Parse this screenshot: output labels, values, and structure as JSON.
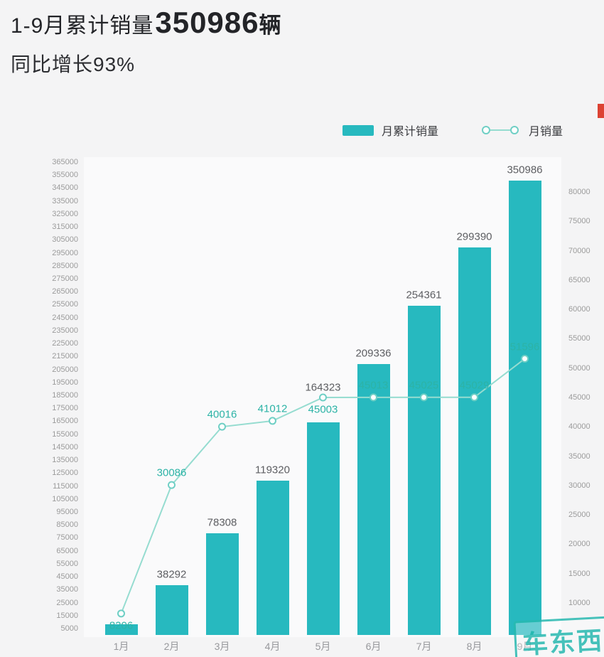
{
  "header": {
    "title_prefix": "1-9月累计销量",
    "title_number": "350986",
    "title_unit": "辆",
    "subtitle": "同比增长93%"
  },
  "legend": {
    "bar_label": "月累计销量",
    "line_label": "月销量"
  },
  "watermark_text": "车东西",
  "colors": {
    "bar": "#27b9bf",
    "line": "#95dcd0",
    "marker_stroke": "#6fcfc5",
    "line_label": "#2cb3a6",
    "bar_label": "#5d5e62",
    "axis_text": "#9b9b9b",
    "accent_tab": "#dc4233",
    "watermark": "#28b9b0"
  },
  "chart_data": {
    "type": "bar",
    "subtype": "bar+line combo, dual y-axis",
    "categories": [
      "1月",
      "2月",
      "3月",
      "4月",
      "5月",
      "6月",
      "7月",
      "8月",
      "9月"
    ],
    "series": [
      {
        "name": "月累计销量",
        "type": "bar",
        "axis": "left",
        "values": [
          8206,
          38292,
          78308,
          119320,
          164323,
          209336,
          254361,
          299390,
          350986
        ]
      },
      {
        "name": "月销量",
        "type": "line",
        "axis": "right",
        "values": [
          8206,
          30086,
          40016,
          41012,
          45003,
          45013,
          45025,
          45029,
          51596
        ]
      }
    ],
    "left_axis": {
      "min": 5000,
      "max": 365000,
      "step": 10000
    },
    "right_axis": {
      "min": 10000,
      "max": 80000,
      "step": 5000
    },
    "layout": {
      "legend_position": "top-right",
      "grid": false,
      "line_label_below": [
        0,
        4
      ],
      "bar_labels_hidden": [
        0
      ]
    }
  }
}
